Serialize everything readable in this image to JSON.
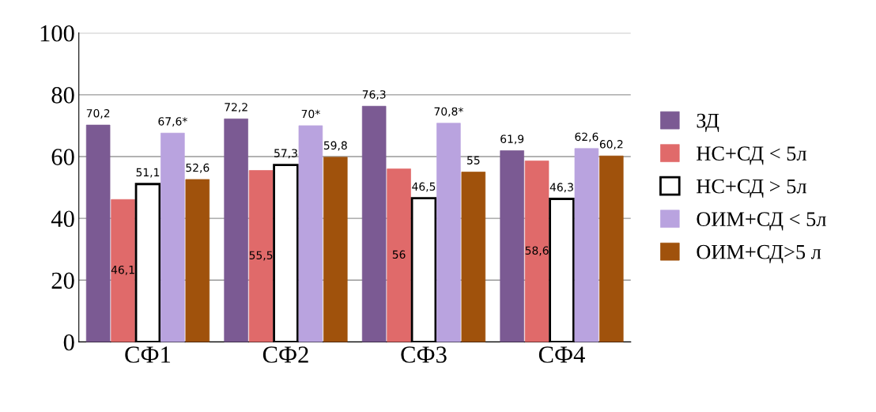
{
  "chart_data": {
    "type": "bar",
    "categories": [
      "СФ1",
      "СФ2",
      "СФ3",
      "СФ4"
    ],
    "series": [
      {
        "name": "ЗД",
        "color": "#7b5a93",
        "values": [
          70.2,
          72.2,
          76.3,
          61.9
        ],
        "value_labels": [
          "70,2",
          "72,2",
          "76,3",
          "61,9"
        ]
      },
      {
        "name": "НС+СД < 5л",
        "color": "#e06a6a",
        "values": [
          46.1,
          55.5,
          56,
          58.6
        ],
        "value_labels": [
          "46,1",
          "55,5",
          "56",
          "58,6"
        ]
      },
      {
        "name": "НС+СД > 5л",
        "color": "#ffffff",
        "values": [
          51.1,
          57.3,
          46.5,
          46.3
        ],
        "value_labels": [
          "51,1",
          "57,3",
          "46,5",
          "46,3"
        ]
      },
      {
        "name": "ОИМ+СД < 5л",
        "color": "#b9a3df",
        "values": [
          67.6,
          70,
          70.8,
          62.6
        ],
        "value_labels": [
          "67,6*",
          "70*",
          "70,8*",
          "62,6"
        ]
      },
      {
        "name": "ОИМ+СД>5 л",
        "color": "#a0520c",
        "values": [
          52.6,
          59.8,
          55,
          60.2
        ],
        "value_labels": [
          "52,6",
          "59,8",
          "55",
          "60,2"
        ]
      }
    ],
    "ylim": [
      0,
      100
    ],
    "yticks": [
      0,
      20,
      40,
      60,
      80,
      100
    ],
    "grid": "y",
    "legend": "right"
  }
}
